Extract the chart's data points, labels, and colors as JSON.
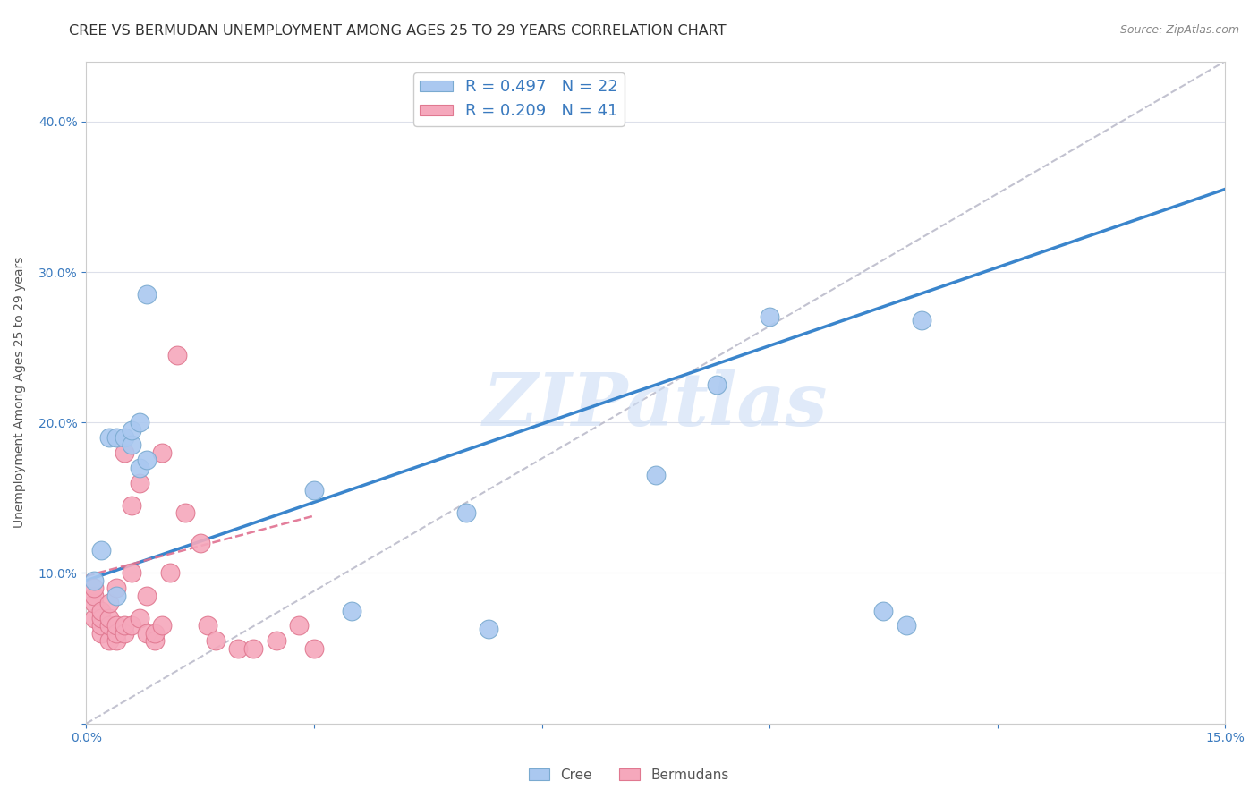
{
  "title": "CREE VS BERMUDAN UNEMPLOYMENT AMONG AGES 25 TO 29 YEARS CORRELATION CHART",
  "source": "Source: ZipAtlas.com",
  "xlabel": "",
  "ylabel": "Unemployment Among Ages 25 to 29 years",
  "xlim": [
    0.0,
    0.15
  ],
  "ylim": [
    0.0,
    0.44
  ],
  "xticks": [
    0.0,
    0.03,
    0.06,
    0.09,
    0.12,
    0.15
  ],
  "yticks": [
    0.0,
    0.1,
    0.2,
    0.3,
    0.4
  ],
  "xtick_labels": [
    "0.0%",
    "",
    "",
    "",
    "",
    "15.0%"
  ],
  "ytick_labels": [
    "",
    "10.0%",
    "20.0%",
    "30.0%",
    "40.0%"
  ],
  "cree_color": "#aac8f0",
  "bermuda_color": "#f5a8bc",
  "cree_edge": "#7aaad0",
  "bermuda_edge": "#e07890",
  "cree_line_color": "#3a85cc",
  "bermuda_line_color": "#e07090",
  "ref_line_color": "#b8b8c8",
  "legend_text_color": "#3a7abf",
  "watermark": "ZIPatlas",
  "watermark_color": "#ccddf5",
  "legend_r_cree": "R = 0.497",
  "legend_n_cree": "N = 22",
  "legend_r_bermuda": "R = 0.209",
  "legend_n_bermuda": "N = 41",
  "cree_line_x0": 0.0,
  "cree_line_y0": 0.095,
  "cree_line_x1": 0.15,
  "cree_line_y1": 0.355,
  "bermuda_line_x0": 0.0,
  "bermuda_line_y0": 0.098,
  "bermuda_line_x1": 0.03,
  "bermuda_line_y1": 0.138,
  "ref_line_x0": 0.0,
  "ref_line_y0": 0.0,
  "ref_line_x1": 0.15,
  "ref_line_y1": 0.44,
  "cree_x": [
    0.001,
    0.002,
    0.003,
    0.004,
    0.004,
    0.005,
    0.006,
    0.006,
    0.007,
    0.007,
    0.008,
    0.008,
    0.03,
    0.035,
    0.05,
    0.053,
    0.075,
    0.083,
    0.09,
    0.105,
    0.108,
    0.11
  ],
  "cree_y": [
    0.095,
    0.115,
    0.19,
    0.085,
    0.19,
    0.19,
    0.185,
    0.195,
    0.17,
    0.2,
    0.175,
    0.285,
    0.155,
    0.075,
    0.14,
    0.063,
    0.165,
    0.225,
    0.27,
    0.075,
    0.065,
    0.268
  ],
  "bermuda_x": [
    0.001,
    0.001,
    0.001,
    0.001,
    0.002,
    0.002,
    0.002,
    0.002,
    0.003,
    0.003,
    0.003,
    0.003,
    0.004,
    0.004,
    0.004,
    0.004,
    0.005,
    0.005,
    0.005,
    0.006,
    0.006,
    0.006,
    0.007,
    0.007,
    0.008,
    0.008,
    0.009,
    0.009,
    0.01,
    0.01,
    0.011,
    0.012,
    0.013,
    0.015,
    0.016,
    0.017,
    0.02,
    0.022,
    0.025,
    0.028,
    0.03
  ],
  "bermuda_y": [
    0.07,
    0.08,
    0.085,
    0.09,
    0.06,
    0.065,
    0.07,
    0.075,
    0.055,
    0.065,
    0.07,
    0.08,
    0.055,
    0.06,
    0.065,
    0.09,
    0.06,
    0.065,
    0.18,
    0.065,
    0.1,
    0.145,
    0.07,
    0.16,
    0.06,
    0.085,
    0.055,
    0.06,
    0.065,
    0.18,
    0.1,
    0.245,
    0.14,
    0.12,
    0.065,
    0.055,
    0.05,
    0.05,
    0.055,
    0.065,
    0.05
  ],
  "background_color": "#ffffff",
  "grid_color": "#dde0ea",
  "title_fontsize": 11.5,
  "axis_fontsize": 10,
  "tick_fontsize": 10,
  "marker_size": 8
}
